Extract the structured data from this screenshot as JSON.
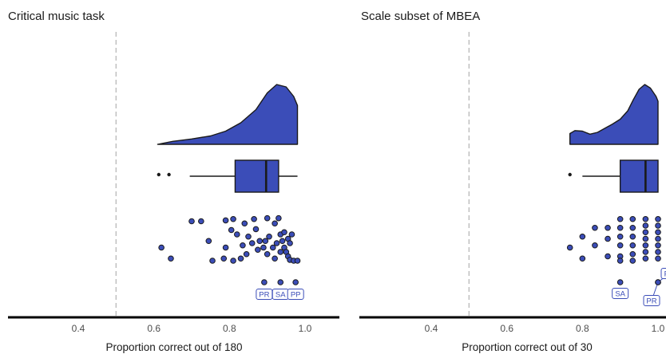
{
  "colors": {
    "fill": "#3b4db8",
    "outline": "#1a1a1a",
    "ref_line": "#bdbdbd",
    "label": "#3b4db8"
  },
  "chart_data": [
    {
      "type": "raincloud",
      "title": "Critical music task",
      "xlabel": "Proportion correct out of 180",
      "xlim": [
        0.2,
        1.05
      ],
      "xticks": [
        0.4,
        0.6,
        0.8,
        1.0
      ],
      "xtick_labels": [
        "0.4",
        "0.6",
        "0.8",
        "1.0"
      ],
      "reference_line": 0.5,
      "density": [
        [
          0.61,
          0
        ],
        [
          0.65,
          0.05
        ],
        [
          0.7,
          0.09
        ],
        [
          0.75,
          0.14
        ],
        [
          0.79,
          0.22
        ],
        [
          0.83,
          0.36
        ],
        [
          0.87,
          0.58
        ],
        [
          0.9,
          0.86
        ],
        [
          0.925,
          1.0
        ],
        [
          0.95,
          0.96
        ],
        [
          0.97,
          0.8
        ],
        [
          0.98,
          0.65
        ]
      ],
      "box": {
        "min": 0.695,
        "q1": 0.815,
        "median": 0.897,
        "q3": 0.93,
        "max": 0.98,
        "outliers": [
          0.613,
          0.64
        ]
      },
      "points": [
        [
          0.7,
          0.9
        ],
        [
          0.725,
          0.9
        ],
        [
          0.62,
          0.3
        ],
        [
          0.645,
          0.05
        ],
        [
          0.755,
          0.0
        ],
        [
          0.745,
          0.45
        ],
        [
          0.79,
          0.92
        ],
        [
          0.81,
          0.95
        ],
        [
          0.84,
          0.85
        ],
        [
          0.865,
          0.95
        ],
        [
          0.9,
          0.97
        ],
        [
          0.92,
          0.85
        ],
        [
          0.93,
          0.97
        ],
        [
          0.805,
          0.7
        ],
        [
          0.82,
          0.6
        ],
        [
          0.85,
          0.55
        ],
        [
          0.87,
          0.72
        ],
        [
          0.88,
          0.45
        ],
        [
          0.905,
          0.55
        ],
        [
          0.915,
          0.3
        ],
        [
          0.935,
          0.6
        ],
        [
          0.945,
          0.65
        ],
        [
          0.955,
          0.5
        ],
        [
          0.96,
          0.4
        ],
        [
          0.965,
          0.6
        ],
        [
          0.79,
          0.3
        ],
        [
          0.835,
          0.35
        ],
        [
          0.86,
          0.4
        ],
        [
          0.875,
          0.25
        ],
        [
          0.89,
          0.3
        ],
        [
          0.9,
          0.15
        ],
        [
          0.92,
          0.05
        ],
        [
          0.925,
          0.4
        ],
        [
          0.935,
          0.2
        ],
        [
          0.945,
          0.3
        ],
        [
          0.95,
          0.2
        ],
        [
          0.955,
          0.1
        ],
        [
          0.96,
          0.02
        ],
        [
          0.97,
          0.0
        ],
        [
          0.98,
          0.0
        ],
        [
          0.785,
          0.05
        ],
        [
          0.81,
          0.0
        ],
        [
          0.845,
          0.15
        ],
        [
          0.895,
          0.45
        ],
        [
          0.94,
          0.45
        ],
        [
          0.83,
          0.05
        ]
      ],
      "labeled_points": [
        {
          "x": 0.892,
          "label": "PR"
        },
        {
          "x": 0.935,
          "label": "SA"
        },
        {
          "x": 0.975,
          "label": "PP"
        }
      ]
    },
    {
      "type": "raincloud",
      "title": "Scale subset of MBEA",
      "xlabel": "Proportion correct out of 30",
      "xlim": [
        0.2,
        1.05
      ],
      "xticks": [
        0.4,
        0.6,
        0.8,
        1.0
      ],
      "xtick_labels": [
        "0.4",
        "0.6",
        "0.8",
        "1.0"
      ],
      "reference_line": 0.5,
      "density": [
        [
          0.767,
          0.18
        ],
        [
          0.78,
          0.23
        ],
        [
          0.8,
          0.22
        ],
        [
          0.82,
          0.17
        ],
        [
          0.84,
          0.2
        ],
        [
          0.86,
          0.27
        ],
        [
          0.88,
          0.34
        ],
        [
          0.9,
          0.42
        ],
        [
          0.92,
          0.56
        ],
        [
          0.935,
          0.75
        ],
        [
          0.95,
          0.92
        ],
        [
          0.965,
          1.0
        ],
        [
          0.98,
          0.94
        ],
        [
          0.995,
          0.8
        ],
        [
          1.0,
          0.72
        ]
      ],
      "box": {
        "min": 0.8,
        "q1": 0.9,
        "median": 0.967,
        "q3": 1.0,
        "max": 1.0,
        "outliers": [
          0.767
        ]
      },
      "points": [
        [
          0.767,
          0.3
        ],
        [
          0.8,
          0.05
        ],
        [
          0.8,
          0.55
        ],
        [
          0.833,
          0.75
        ],
        [
          0.833,
          0.35
        ],
        [
          0.867,
          0.75
        ],
        [
          0.867,
          0.5
        ],
        [
          0.867,
          0.1
        ],
        [
          0.9,
          0.95
        ],
        [
          0.9,
          0.75
        ],
        [
          0.9,
          0.55
        ],
        [
          0.9,
          0.35
        ],
        [
          0.9,
          0.1
        ],
        [
          0.9,
          0.0
        ],
        [
          0.933,
          0.95
        ],
        [
          0.933,
          0.75
        ],
        [
          0.933,
          0.55
        ],
        [
          0.933,
          0.35
        ],
        [
          0.933,
          0.15
        ],
        [
          0.933,
          0.0
        ],
        [
          0.967,
          0.95
        ],
        [
          0.967,
          0.8
        ],
        [
          0.967,
          0.65
        ],
        [
          0.967,
          0.5
        ],
        [
          0.967,
          0.35
        ],
        [
          0.967,
          0.2
        ],
        [
          0.967,
          0.05
        ],
        [
          1.0,
          0.95
        ],
        [
          1.0,
          0.8
        ],
        [
          1.0,
          0.65
        ],
        [
          1.0,
          0.5
        ],
        [
          1.0,
          0.35
        ],
        [
          1.0,
          0.2
        ],
        [
          1.0,
          0.05
        ]
      ],
      "labeled_points": [
        {
          "x": 0.9,
          "label": "SA"
        },
        {
          "x": 1.0,
          "label": "PP"
        },
        {
          "x": 1.0,
          "label": "PR"
        }
      ]
    }
  ]
}
